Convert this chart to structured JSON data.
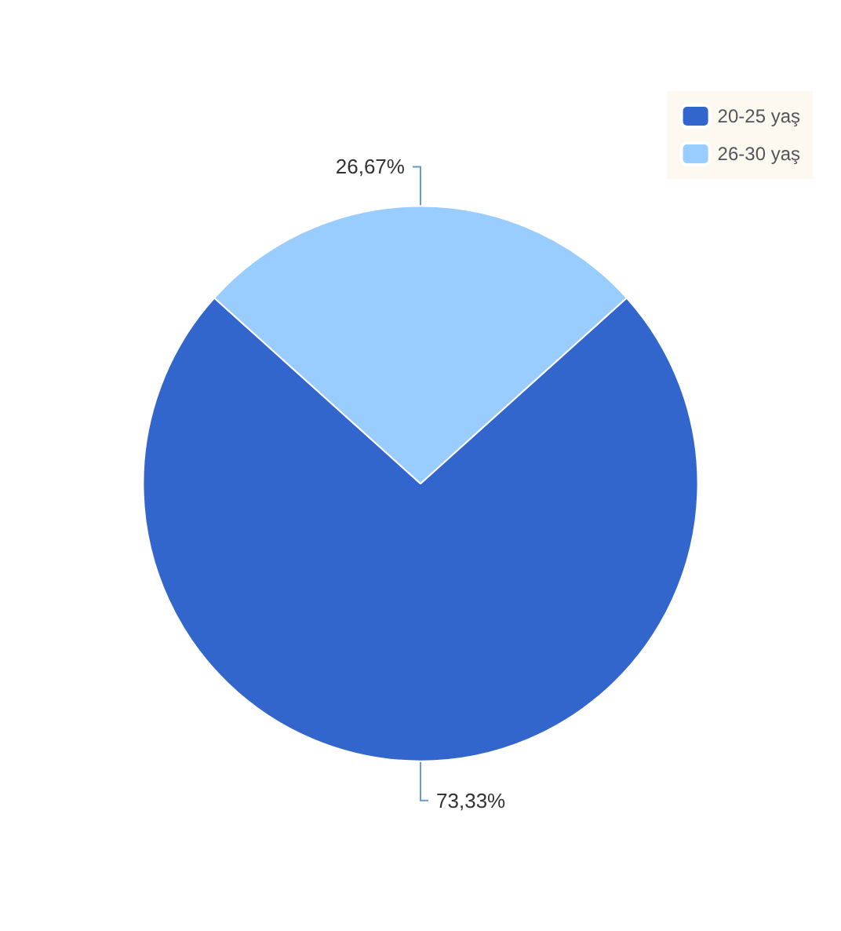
{
  "chart_data": {
    "type": "pie",
    "categories": [
      "20-25 yaş",
      "26-30 yaş"
    ],
    "values": [
      73.33,
      26.67
    ],
    "colors": [
      "#3366cc",
      "#99ccff"
    ],
    "value_labels": [
      "73,33%",
      "26,67%"
    ],
    "legend": "top right"
  }
}
